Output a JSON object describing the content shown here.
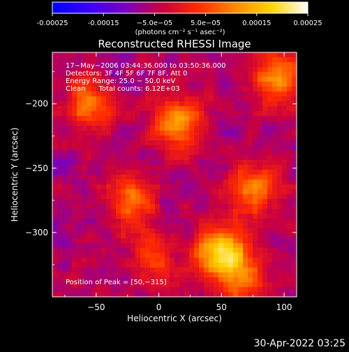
{
  "chart_data": {
    "type": "heatmap",
    "title": "Reconstructed RHESSI Image",
    "xlabel": "Heliocentric X (arcsec)",
    "ylabel": "Heliocentric Y (arcsec)",
    "xlim": [
      -85,
      110
    ],
    "ylim": [
      -350,
      -160
    ],
    "x_ticks": [
      -50,
      0,
      50,
      100
    ],
    "y_ticks": [
      -200,
      -250,
      -300
    ],
    "x_tick_labels": [
      "−50",
      "0",
      "50",
      "100"
    ],
    "y_tick_labels": [
      "−200",
      "−250",
      "−300"
    ],
    "colorbar": {
      "min": -0.00025,
      "max": 0.00025,
      "ticks": [
        -0.00025,
        -0.00015,
        -5e-05,
        5e-05,
        0.00015,
        0.00025
      ],
      "tick_labels": [
        "-0.00025",
        "-0.00015",
        "−5.0e−05",
        "5.0e−05",
        "0.00015",
        "0.00025"
      ],
      "unit_label": "(photons cm⁻² s⁻¹ asec⁻²)",
      "colors": [
        "#0000ff",
        "#3a00ff",
        "#7a00c0",
        "#c80040",
        "#ff2a00",
        "#ff8800",
        "#ffd400",
        "#ffffff"
      ]
    },
    "annotations": [
      "17−May−2006 03:44:36.000 to 03:50:36.000",
      "Detectors: 3F 4F 5F 6F 7F 8F, Att 0",
      "Energy Range: 25.0 − 50.0 keV",
      "Clean      Total counts: 6.12E+03"
    ],
    "peak_label": "Position of Peak = [50,−315]",
    "peak": [
      50,
      -315
    ],
    "sources": [
      {
        "x": 50,
        "y": -315,
        "amplitude": 0.00025
      },
      {
        "x": 15,
        "y": -215,
        "amplitude": 0.00019
      },
      {
        "x": 75,
        "y": -265,
        "amplitude": 0.00016
      },
      {
        "x": 95,
        "y": -180,
        "amplitude": 0.00017
      },
      {
        "x": -20,
        "y": -275,
        "amplitude": 0.00014
      },
      {
        "x": -55,
        "y": -200,
        "amplitude": 0.00015
      },
      {
        "x": 65,
        "y": -335,
        "amplitude": 0.00013
      },
      {
        "x": -5,
        "y": -320,
        "amplitude": 0.0001
      }
    ],
    "background_level": -6e-05,
    "grid": false
  },
  "footer": {
    "timestamp": "30-Apr-2022 03:25"
  }
}
